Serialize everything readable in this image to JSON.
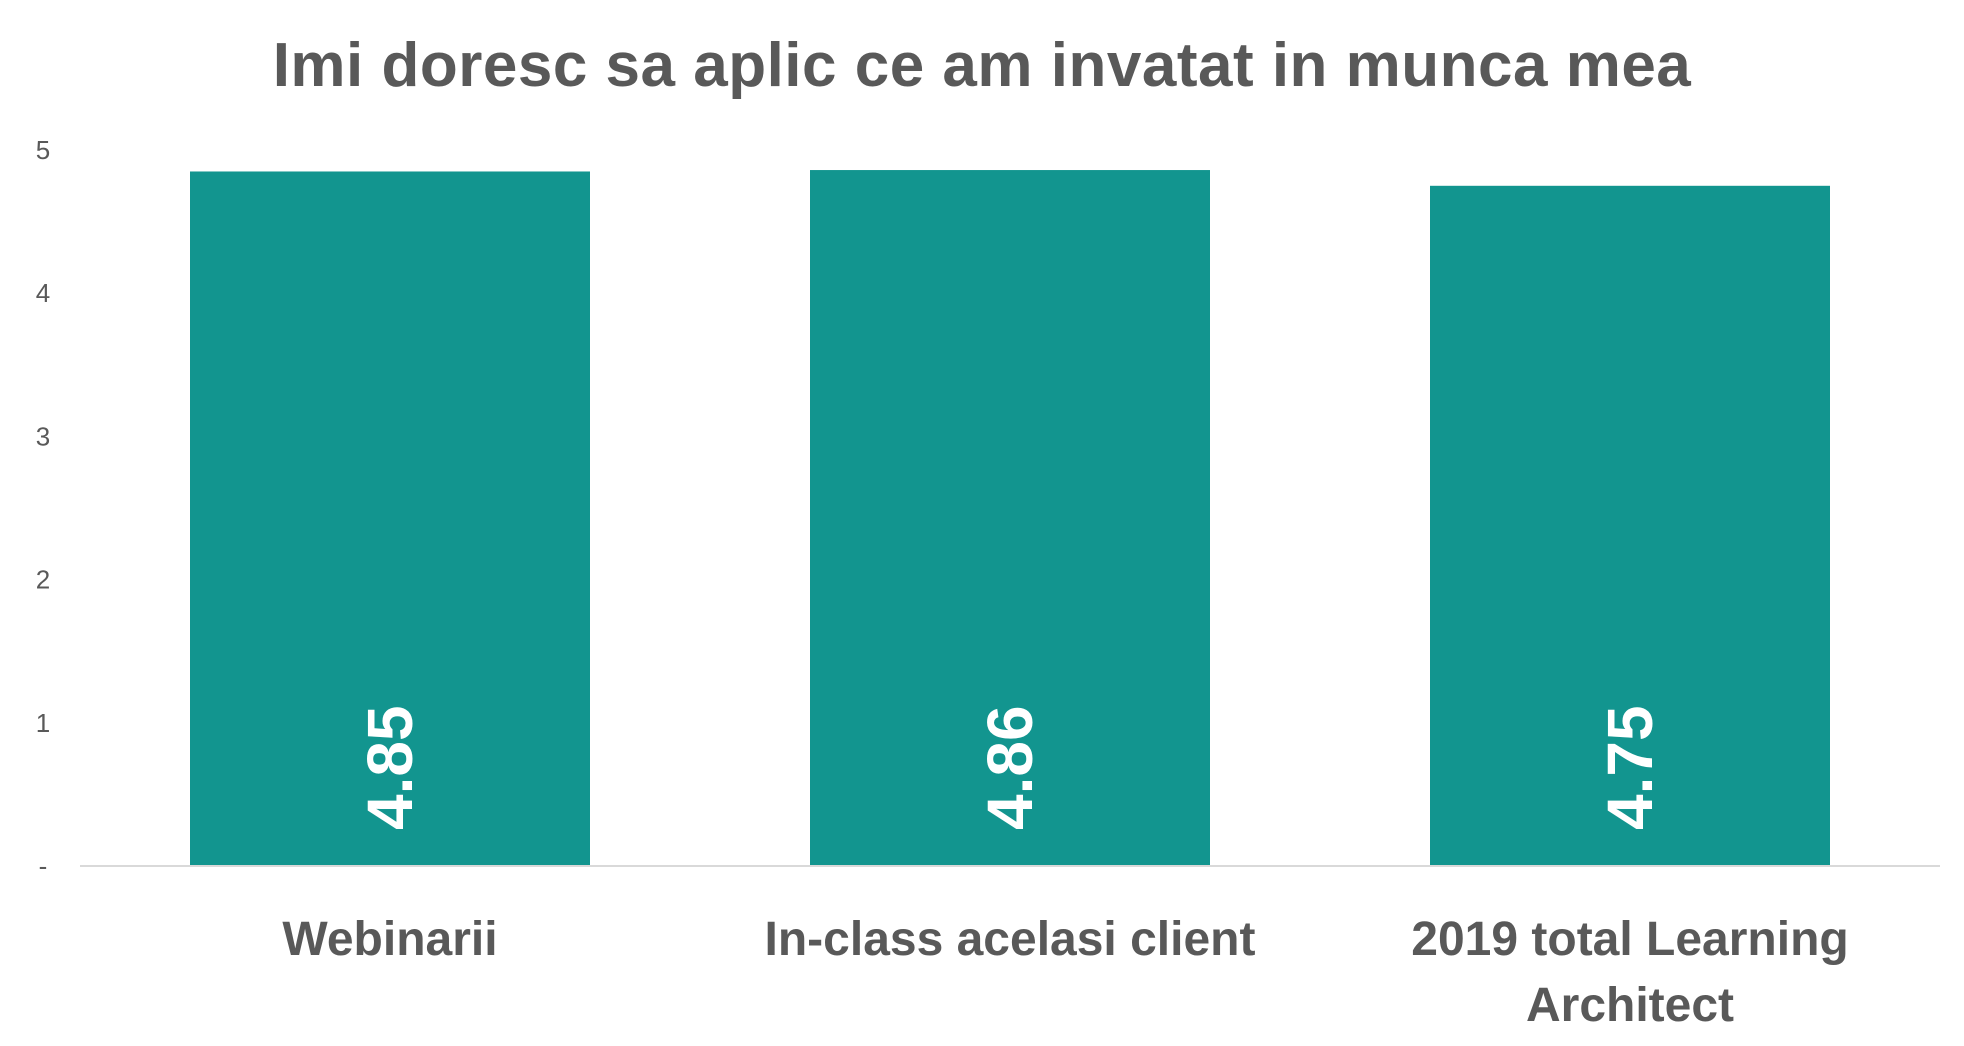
{
  "chart_data": {
    "type": "bar",
    "title": "Imi doresc sa aplic ce am invatat in munca mea",
    "categories": [
      [
        "Webinarii"
      ],
      [
        "In-class acelasi client"
      ],
      [
        "2019 total Learning",
        "Architect"
      ]
    ],
    "values": [
      4.85,
      4.86,
      4.75
    ],
    "data_labels": [
      "4.85",
      "4.86",
      "4.75"
    ],
    "ylim": [
      0,
      5
    ],
    "yticks": [
      {
        "value": 0,
        "label": "-"
      },
      {
        "value": 1,
        "label": "1"
      },
      {
        "value": 2,
        "label": "2"
      },
      {
        "value": 3,
        "label": "3"
      },
      {
        "value": 4,
        "label": "4"
      },
      {
        "value": 5,
        "label": "5"
      }
    ],
    "bar_color": "#12958F",
    "axis_color": "#D9D9D9",
    "text_color": "#595959",
    "grid": false,
    "legend": "none"
  }
}
